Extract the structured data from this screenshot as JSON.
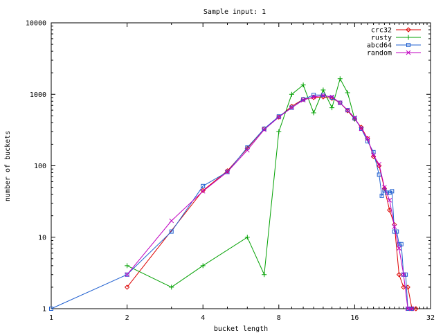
{
  "chart_data": {
    "type": "line",
    "title": "Sample input: 1",
    "xlabel": "bucket length",
    "ylabel": "number of buckets",
    "x_scale": "log2",
    "y_scale": "log10",
    "xlim": [
      1,
      32
    ],
    "ylim": [
      1,
      10000
    ],
    "x_ticks": [
      1,
      2,
      4,
      8,
      16,
      32
    ],
    "x_tick_labels": [
      "1",
      "2",
      "4",
      "8",
      "16",
      "32"
    ],
    "y_ticks": [
      1,
      10,
      100,
      1000,
      10000
    ],
    "y_tick_labels": [
      "1",
      "10",
      "100",
      "1000",
      "10000"
    ],
    "grid": false,
    "legend_position": "top-right",
    "series": [
      {
        "name": "crc32",
        "color": "#dd0000",
        "marker": "diamond",
        "x": [
          2,
          4,
          5,
          6,
          7,
          8,
          9,
          10,
          11,
          12,
          13,
          14,
          15,
          16,
          17,
          18,
          19,
          20,
          21,
          22,
          23,
          24,
          25,
          26,
          27,
          28
        ],
        "y": [
          2,
          45,
          85,
          175,
          330,
          480,
          680,
          850,
          900,
          920,
          880,
          760,
          590,
          450,
          345,
          240,
          135,
          100,
          48,
          24,
          15,
          3,
          2,
          2,
          1,
          1
        ]
      },
      {
        "name": "rusty",
        "color": "#00a000",
        "marker": "plus",
        "x": [
          2,
          3,
          4,
          6,
          7,
          8,
          9,
          10,
          11,
          12,
          13,
          14,
          15,
          16
        ],
        "y": [
          4,
          2,
          4,
          10,
          3,
          300,
          1000,
          1350,
          550,
          1150,
          650,
          1650,
          1050,
          450
        ]
      },
      {
        "name": "abcd64",
        "color": "#2060d0",
        "marker": "square",
        "x": [
          1,
          2,
          3,
          4,
          5,
          6,
          7,
          8,
          9,
          10,
          11,
          12,
          13,
          14,
          15,
          16,
          17,
          18,
          19,
          20,
          20.5,
          21,
          21.5,
          22,
          22.5,
          23,
          23.5,
          24,
          24.5,
          25,
          25.5,
          26,
          26.5,
          27
        ],
        "y": [
          1,
          3,
          12,
          52,
          82,
          180,
          330,
          490,
          650,
          850,
          980,
          980,
          900,
          760,
          600,
          460,
          330,
          220,
          155,
          75,
          38,
          45,
          42,
          42,
          44,
          12,
          12,
          8,
          8,
          3,
          3,
          1,
          1,
          1
        ]
      },
      {
        "name": "random",
        "color": "#c000c0",
        "marker": "cross",
        "x": [
          2,
          3,
          4,
          5,
          6,
          7,
          8,
          9,
          10,
          11,
          12,
          13,
          14,
          15,
          16,
          17,
          18,
          19,
          20,
          21,
          22,
          23,
          24,
          25,
          26,
          27
        ],
        "y": [
          3,
          17,
          44,
          82,
          165,
          320,
          480,
          650,
          830,
          920,
          960,
          920,
          760,
          600,
          470,
          330,
          240,
          140,
          105,
          50,
          33,
          14,
          7,
          3,
          1,
          1
        ]
      }
    ]
  }
}
